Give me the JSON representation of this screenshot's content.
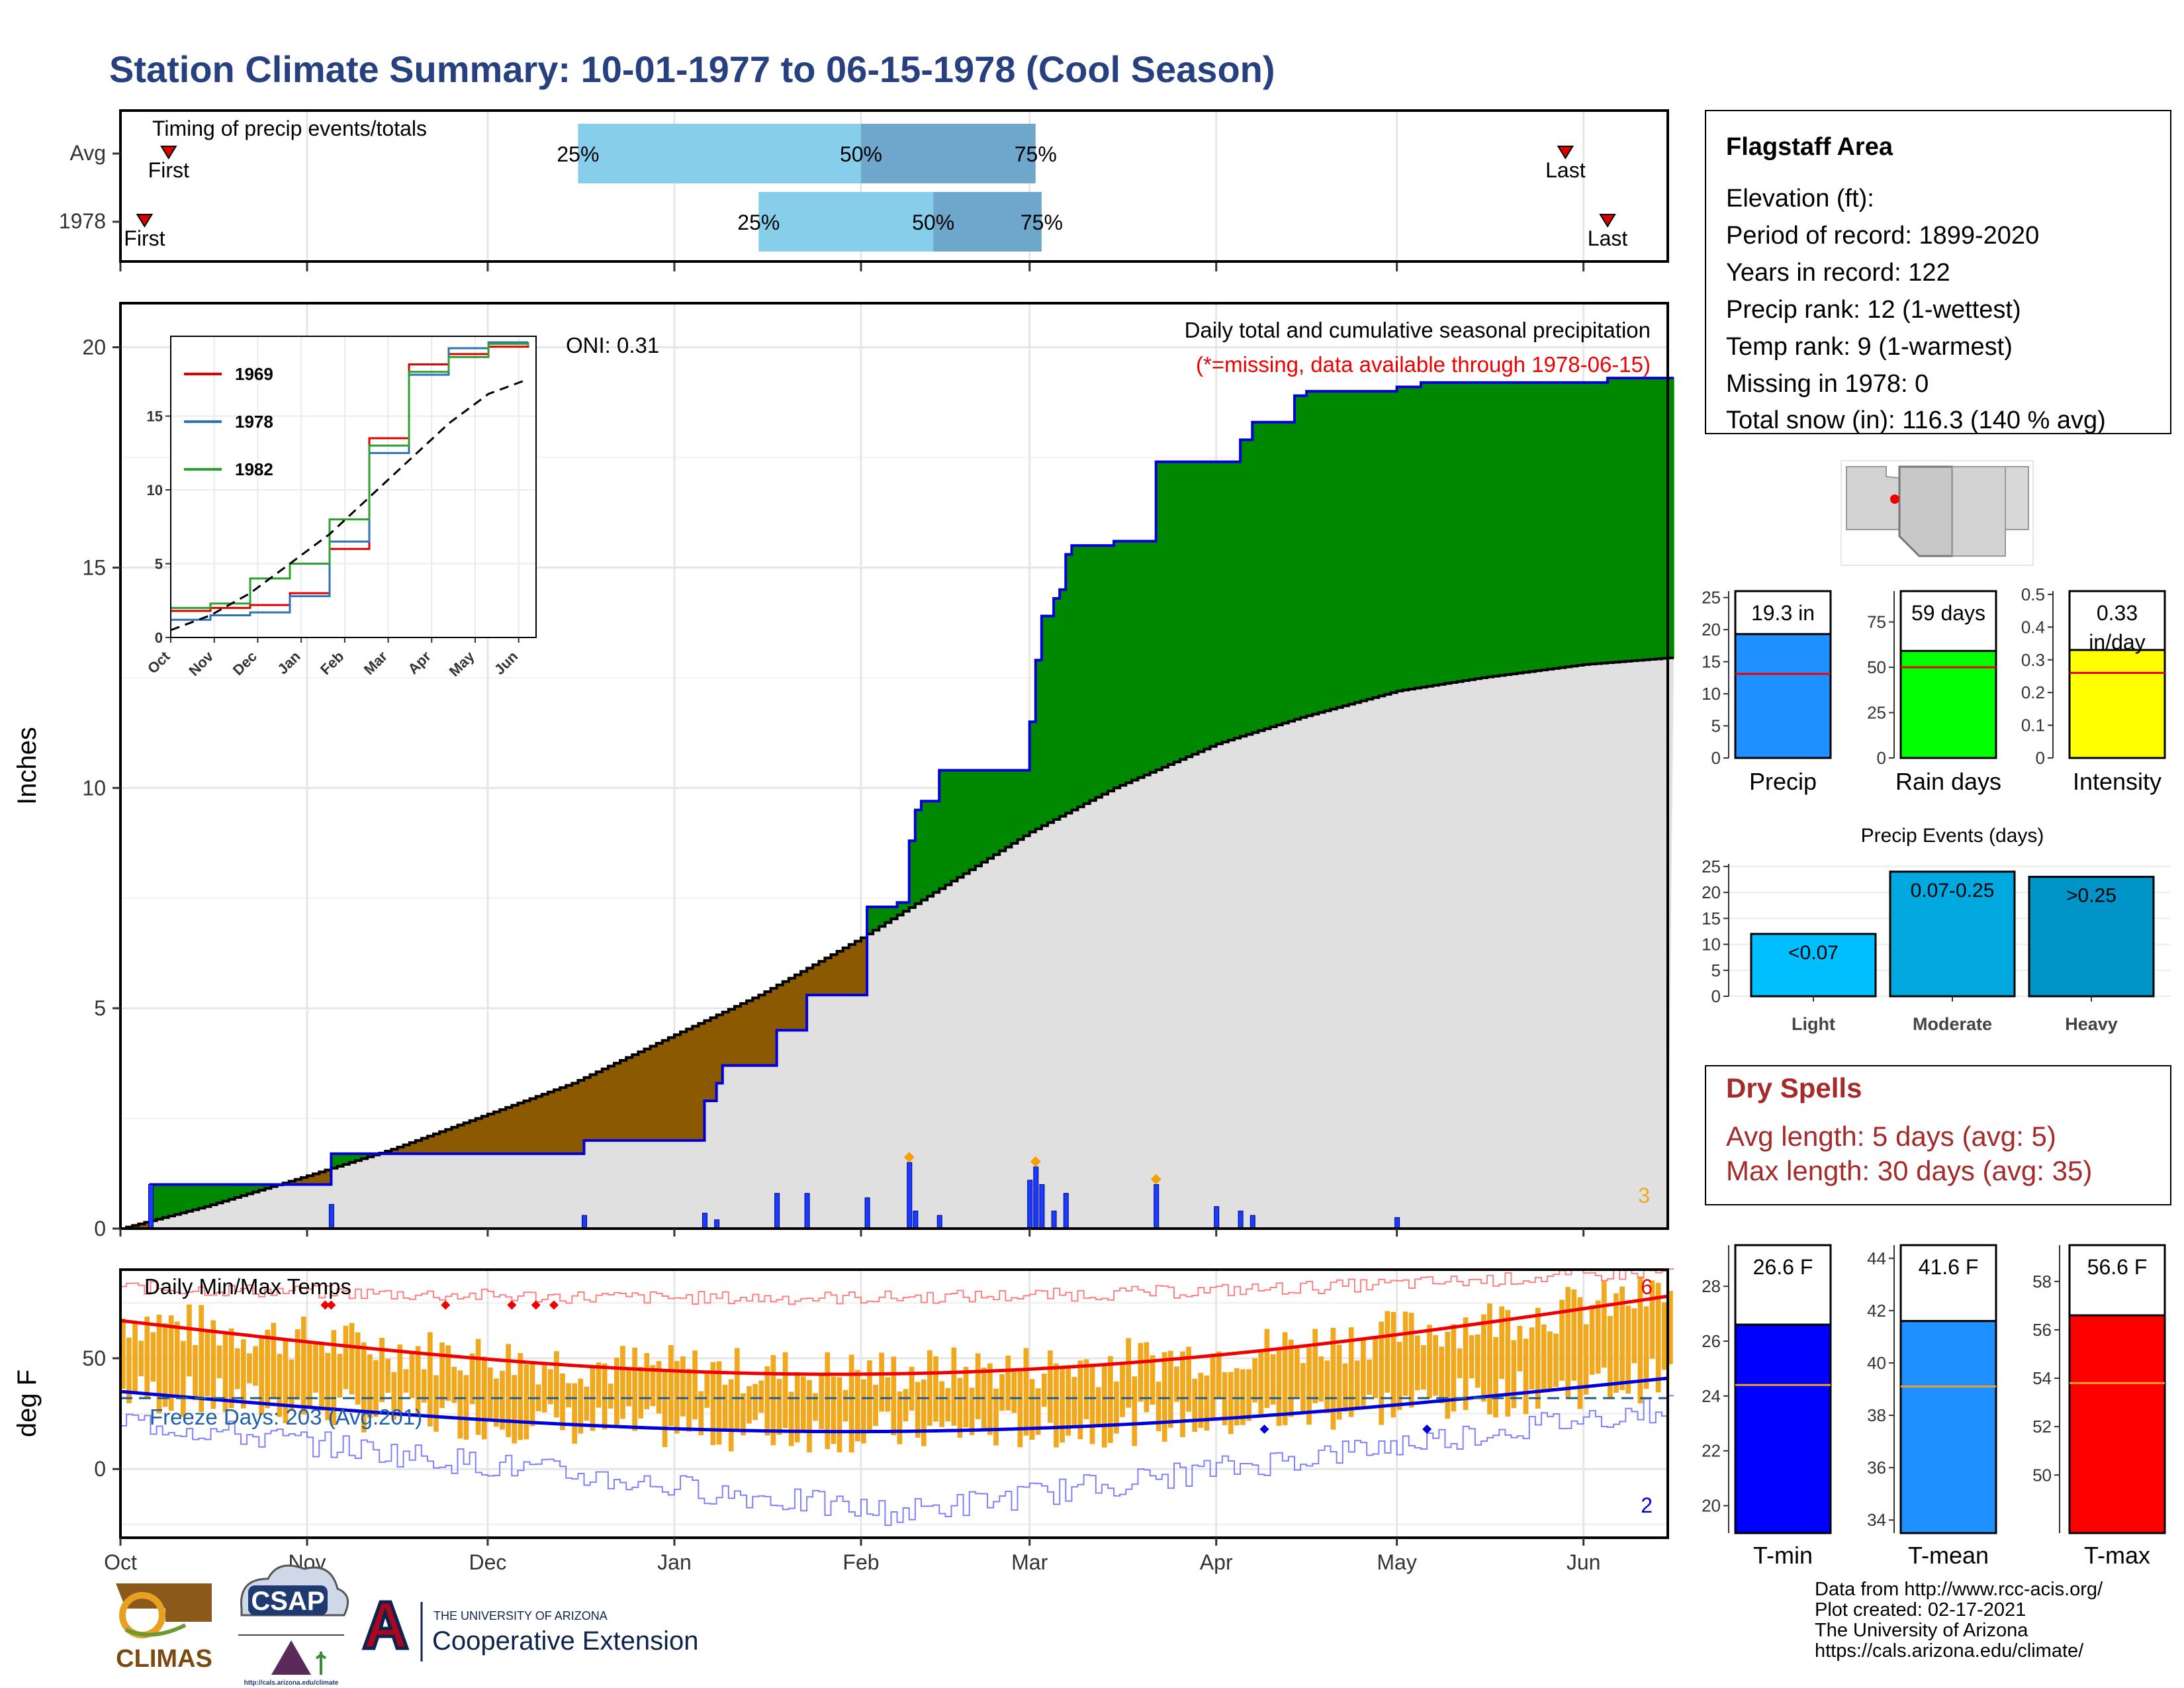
{
  "title": "Station Climate Summary: 10-01-1977 to 06-15-1978 (Cool Season)",
  "colors": {
    "title": "#27407f",
    "green": "#008800",
    "brown": "#8b5a00",
    "gray_fill": "#e0e0e0",
    "blue_line": "#0000dd",
    "light_blue": "#87ceeb",
    "mid_blue": "#6ea6cc",
    "dry_red": "#a52a2a",
    "orange": "#f0a81f"
  },
  "timing": {
    "title": "Timing of precip events/totals",
    "rows": [
      {
        "label": "Avg",
        "first_date": "1977-10-09",
        "first_label": "First",
        "p25_date": "1977-12-16",
        "p50_date": "1978-02-01",
        "p75_date": "1978-03-02",
        "last_date": "1978-05-29",
        "last_label": "Last",
        "p25_label": "25%",
        "p50_label": "50%",
        "p75_label": "75%"
      },
      {
        "label": "1978",
        "first_date": "1977-10-05",
        "first_label": "First",
        "p25_date": "1978-01-15",
        "p50_date": "1978-02-13",
        "p75_date": "1978-03-03",
        "last_date": "1978-06-05",
        "last_label": "Last",
        "p25_label": "25%",
        "p50_label": "50%",
        "p75_label": "75%"
      }
    ]
  },
  "info_box": {
    "station": "Flagstaff Area",
    "lines": [
      "Elevation (ft):",
      "Period of record: 1899-2020",
      "Years in record: 122",
      "Precip rank: 12 (1-wettest)",
      "Temp rank: 9 (1-warmest)",
      "Missing in 1978: 0",
      "Total snow (in): 116.3 (140 % avg)"
    ]
  },
  "chart_data": [
    {
      "type": "area",
      "id": "main_precip",
      "title": "Daily total and cumulative seasonal precipitation",
      "subtitle": "(*=missing, data available through 1978-06-15)",
      "oni_label": "ONI: 0.31",
      "ylabel": "Inches",
      "ylim": [
        0,
        21
      ],
      "yticks": [
        0,
        5,
        10,
        15,
        20
      ],
      "xlim": [
        "1977-10-01",
        "1978-06-15"
      ],
      "xticks": [
        {
          "date": "1977-10-01",
          "label": "Oct"
        },
        {
          "date": "1977-11-01",
          "label": "Nov"
        },
        {
          "date": "1977-12-01",
          "label": "Dec"
        },
        {
          "date": "1978-01-01",
          "label": "Jan"
        },
        {
          "date": "1978-02-01",
          "label": "Feb"
        },
        {
          "date": "1978-03-01",
          "label": "Mar"
        },
        {
          "date": "1978-04-01",
          "label": "Apr"
        },
        {
          "date": "1978-05-01",
          "label": "May"
        },
        {
          "date": "1978-06-01",
          "label": "Jun"
        }
      ],
      "count_label": "3",
      "avg_cumulative": {
        "dates": [
          "1977-10-01",
          "1977-10-15",
          "1977-11-01",
          "1977-11-15",
          "1977-12-01",
          "1977-12-15",
          "1978-01-01",
          "1978-01-15",
          "1978-02-01",
          "1978-02-15",
          "1978-03-01",
          "1978-03-15",
          "1978-04-01",
          "1978-04-15",
          "1978-05-01",
          "1978-05-15",
          "1978-06-01",
          "1978-06-15"
        ],
        "values": [
          0.0,
          0.5,
          1.2,
          1.8,
          2.6,
          3.3,
          4.4,
          5.3,
          6.6,
          7.8,
          9.0,
          10.0,
          11.0,
          11.6,
          12.2,
          12.5,
          12.8,
          12.95
        ]
      },
      "observed_cumulative": {
        "dates": [
          "1977-10-01",
          "1977-10-05",
          "1977-10-06",
          "1977-11-04",
          "1977-11-05",
          "1977-12-16",
          "1977-12-17",
          "1978-01-04",
          "1978-01-06",
          "1978-01-08",
          "1978-01-09",
          "1978-01-17",
          "1978-01-18",
          "1978-01-22",
          "1978-01-23",
          "1978-02-01",
          "1978-02-02",
          "1978-02-07",
          "1978-02-08",
          "1978-02-09",
          "1978-02-10",
          "1978-02-11",
          "1978-02-14",
          "1978-02-20",
          "1978-02-26",
          "1978-03-01",
          "1978-03-02",
          "1978-03-03",
          "1978-03-05",
          "1978-03-06",
          "1978-03-07",
          "1978-03-08",
          "1978-03-09",
          "1978-03-13",
          "1978-03-15",
          "1978-03-20",
          "1978-03-22",
          "1978-04-01",
          "1978-04-05",
          "1978-04-07",
          "1978-04-14",
          "1978-04-16",
          "1978-05-01",
          "1978-05-05",
          "1978-06-05",
          "1978-06-15"
        ],
        "values": [
          0.0,
          0.0,
          1.0,
          1.0,
          1.7,
          1.7,
          2.0,
          2.0,
          2.9,
          3.3,
          3.7,
          3.7,
          4.5,
          4.5,
          5.3,
          5.3,
          7.3,
          7.4,
          7.4,
          8.8,
          9.5,
          9.7,
          10.4,
          10.4,
          10.4,
          11.5,
          12.9,
          13.9,
          14.3,
          14.5,
          15.3,
          15.5,
          15.5,
          15.5,
          15.6,
          15.6,
          17.4,
          17.4,
          17.9,
          18.3,
          18.9,
          19.0,
          19.1,
          19.2,
          19.3,
          19.3
        ]
      },
      "daily_precip": [
        {
          "date": "1977-10-06",
          "value": 1.0
        },
        {
          "date": "1977-11-05",
          "value": 0.55
        },
        {
          "date": "1977-12-17",
          "value": 0.3
        },
        {
          "date": "1978-01-06",
          "value": 0.35
        },
        {
          "date": "1978-01-08",
          "value": 0.2
        },
        {
          "date": "1978-01-18",
          "value": 0.8
        },
        {
          "date": "1978-01-23",
          "value": 0.8
        },
        {
          "date": "1978-02-02",
          "value": 0.7
        },
        {
          "date": "1978-02-09",
          "value": 1.5
        },
        {
          "date": "1978-02-10",
          "value": 0.4
        },
        {
          "date": "1978-02-14",
          "value": 0.3
        },
        {
          "date": "1978-03-01",
          "value": 1.1
        },
        {
          "date": "1978-03-02",
          "value": 1.4
        },
        {
          "date": "1978-03-03",
          "value": 1.0
        },
        {
          "date": "1978-03-05",
          "value": 0.4
        },
        {
          "date": "1978-03-07",
          "value": 0.8
        },
        {
          "date": "1978-03-22",
          "value": 1.0
        },
        {
          "date": "1978-04-01",
          "value": 0.5
        },
        {
          "date": "1978-04-05",
          "value": 0.4
        },
        {
          "date": "1978-04-07",
          "value": 0.3
        },
        {
          "date": "1978-05-01",
          "value": 0.25
        }
      ],
      "orange_markers": [
        "1978-02-09",
        "1978-03-02",
        "1978-03-22"
      ]
    },
    {
      "type": "line",
      "id": "inset_cumulative",
      "ylim": [
        0,
        20
      ],
      "yticks": [
        0,
        5,
        10,
        15
      ],
      "xticks": [
        "Oct",
        "Nov",
        "Dec",
        "Jan",
        "Feb",
        "Mar",
        "Apr",
        "May",
        "Jun"
      ],
      "series": [
        {
          "name": "1969",
          "color": "#dd0000",
          "values": [
            1.8,
            2.0,
            2.2,
            3.0,
            6.0,
            13.5,
            18.5,
            19.2,
            19.7,
            19.8
          ]
        },
        {
          "name": "1978",
          "color": "#2b72b9",
          "values": [
            1.2,
            1.5,
            1.7,
            2.8,
            6.5,
            12.5,
            17.8,
            19.6,
            20.0,
            20.0
          ]
        },
        {
          "name": "1982",
          "color": "#2ca02c",
          "values": [
            2.0,
            2.3,
            4.0,
            5.0,
            8.0,
            13.0,
            18.0,
            19.0,
            19.9,
            20.0
          ]
        },
        {
          "name": "",
          "color": "#000000",
          "dashed": true,
          "values": [
            0.5,
            1.5,
            3.0,
            5.0,
            7.0,
            9.5,
            12.0,
            14.5,
            16.5,
            17.5
          ]
        }
      ]
    },
    {
      "type": "bar",
      "id": "precip_total",
      "categories": [
        "Precip"
      ],
      "values": [
        19.3
      ],
      "avg": 13.1,
      "value_label": "19.3 in",
      "ylim": [
        0,
        26
      ],
      "yticks": [
        0,
        5,
        10,
        15,
        20,
        25
      ]
    },
    {
      "type": "bar",
      "id": "rain_days",
      "categories": [
        "Rain days"
      ],
      "values": [
        59
      ],
      "avg": 50,
      "value_label": "59 days",
      "ylim": [
        0,
        92
      ],
      "yticks": [
        0,
        25,
        50,
        75
      ]
    },
    {
      "type": "bar",
      "id": "intensity",
      "categories": [
        "Intensity"
      ],
      "values": [
        0.33
      ],
      "avg": 0.26,
      "value_label": "0.33 in/day",
      "ylim": [
        0,
        0.51
      ],
      "yticks": [
        0.0,
        0.1,
        0.2,
        0.3,
        0.4,
        0.5
      ]
    },
    {
      "type": "bar",
      "id": "precip_events",
      "title": "Precip Events (days)",
      "categories": [
        "Light",
        "Moderate",
        "Heavy"
      ],
      "values": [
        12,
        24,
        23
      ],
      "bar_labels": [
        "<0.07",
        "0.07-0.25",
        ">0.25"
      ],
      "ylim": [
        0,
        25.5
      ],
      "yticks": [
        0,
        5,
        10,
        15,
        20,
        25
      ]
    },
    {
      "type": "bar",
      "id": "daily_temps",
      "title": "Daily Min/Max Temps",
      "ylabel": "deg F",
      "ylim": [
        -31,
        90
      ],
      "yticks": [
        0,
        50
      ],
      "freeze_label": "Freeze Days: 203 (Avg:201)",
      "freeze_line": 32,
      "count_top": "6",
      "count_bottom": "2",
      "avg_max_start": 67,
      "avg_max_end": 78,
      "avg_max_min": 43,
      "avg_min_start": 35,
      "avg_min_end": 41,
      "avg_min_min": 17,
      "rec_max_start": 82,
      "rec_max_end": 89,
      "rec_min_start": 22,
      "rec_min_mid": -20,
      "rec_min_end": 28
    },
    {
      "type": "bar",
      "id": "tmin",
      "categories": [
        "T-min"
      ],
      "values": [
        26.6
      ],
      "avg": 24.4,
      "value_label": "26.6 F",
      "ylim": [
        19,
        29.5
      ],
      "yticks": [
        20,
        22,
        24,
        26,
        28
      ]
    },
    {
      "type": "bar",
      "id": "tmean",
      "categories": [
        "T-mean"
      ],
      "values": [
        41.6
      ],
      "avg": 39.1,
      "value_label": "41.6 F",
      "ylim": [
        33.5,
        44.5
      ],
      "yticks": [
        34,
        36,
        38,
        40,
        42,
        44
      ]
    },
    {
      "type": "bar",
      "id": "tmax",
      "categories": [
        "T-max"
      ],
      "values": [
        56.6
      ],
      "avg": 53.8,
      "value_label": "56.6 F",
      "ylim": [
        47.6,
        59.5
      ],
      "yticks": [
        50,
        52,
        54,
        56,
        58
      ]
    }
  ],
  "dry_spells": {
    "title": "Dry Spells",
    "avg_length": "Avg length: 5 days (avg: 5)",
    "max_length": "Max length: 30 days (avg: 35)"
  },
  "logos": {
    "climas": "CLIMAS",
    "csap": "CSAP",
    "csap_url": "http://cals.arizona.edu/climate",
    "ua_small": "THE UNIVERSITY OF ARIZONA",
    "ua_big": "Cooperative Extension"
  },
  "footer": [
    "Data from http://www.rcc-acis.org/",
    "Plot created: 02-17-2021",
    "The University of Arizona",
    "https://cals.arizona.edu/climate/"
  ]
}
